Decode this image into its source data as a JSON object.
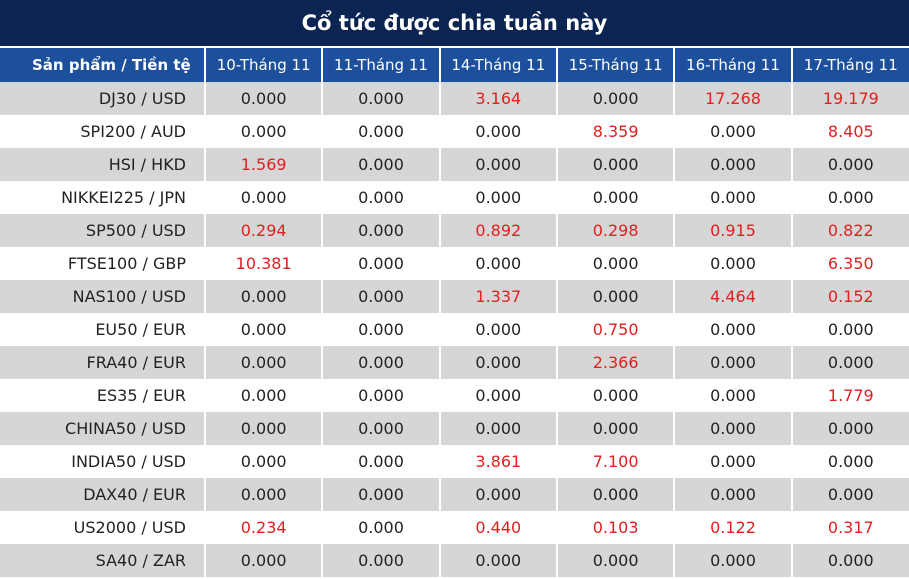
{
  "title": "Cổ tức được chia tuần này",
  "table": {
    "header": [
      "Sản phẩm / Tiền tệ",
      "10-Tháng 11",
      "11-Tháng 11",
      "14-Tháng 11",
      "15-Tháng 11",
      "16-Tháng 11",
      "17-Tháng 11"
    ],
    "rows": [
      [
        "DJ30 / USD",
        "0.000",
        "0.000",
        "3.164",
        "0.000",
        "17.268",
        "19.179"
      ],
      [
        "SPI200 / AUD",
        "0.000",
        "0.000",
        "0.000",
        "8.359",
        "0.000",
        "8.405"
      ],
      [
        "HSI / HKD",
        "1.569",
        "0.000",
        "0.000",
        "0.000",
        "0.000",
        "0.000"
      ],
      [
        "NIKKEI225 / JPN",
        "0.000",
        "0.000",
        "0.000",
        "0.000",
        "0.000",
        "0.000"
      ],
      [
        "SP500 / USD",
        "0.294",
        "0.000",
        "0.892",
        "0.298",
        "0.915",
        "0.822"
      ],
      [
        "FTSE100 / GBP",
        "10.381",
        "0.000",
        "0.000",
        "0.000",
        "0.000",
        "6.350"
      ],
      [
        "NAS100 / USD",
        "0.000",
        "0.000",
        "1.337",
        "0.000",
        "4.464",
        "0.152"
      ],
      [
        "EU50 / EUR",
        "0.000",
        "0.000",
        "0.000",
        "0.750",
        "0.000",
        "0.000"
      ],
      [
        "FRA40 / EUR",
        "0.000",
        "0.000",
        "0.000",
        "2.366",
        "0.000",
        "0.000"
      ],
      [
        "ES35 / EUR",
        "0.000",
        "0.000",
        "0.000",
        "0.000",
        "0.000",
        "1.779"
      ],
      [
        "CHINA50 / USD",
        "0.000",
        "0.000",
        "0.000",
        "0.000",
        "0.000",
        "0.000"
      ],
      [
        "INDIA50 / USD",
        "0.000",
        "0.000",
        "3.861",
        "7.100",
        "0.000",
        "0.000"
      ],
      [
        "DAX40 / EUR",
        "0.000",
        "0.000",
        "0.000",
        "0.000",
        "0.000",
        "0.000"
      ],
      [
        "US2000 / USD",
        "0.234",
        "0.000",
        "0.440",
        "0.103",
        "0.122",
        "0.317"
      ],
      [
        "SA40 / ZAR",
        "0.000",
        "0.000",
        "0.000",
        "0.000",
        "0.000",
        "0.000"
      ]
    ]
  }
}
